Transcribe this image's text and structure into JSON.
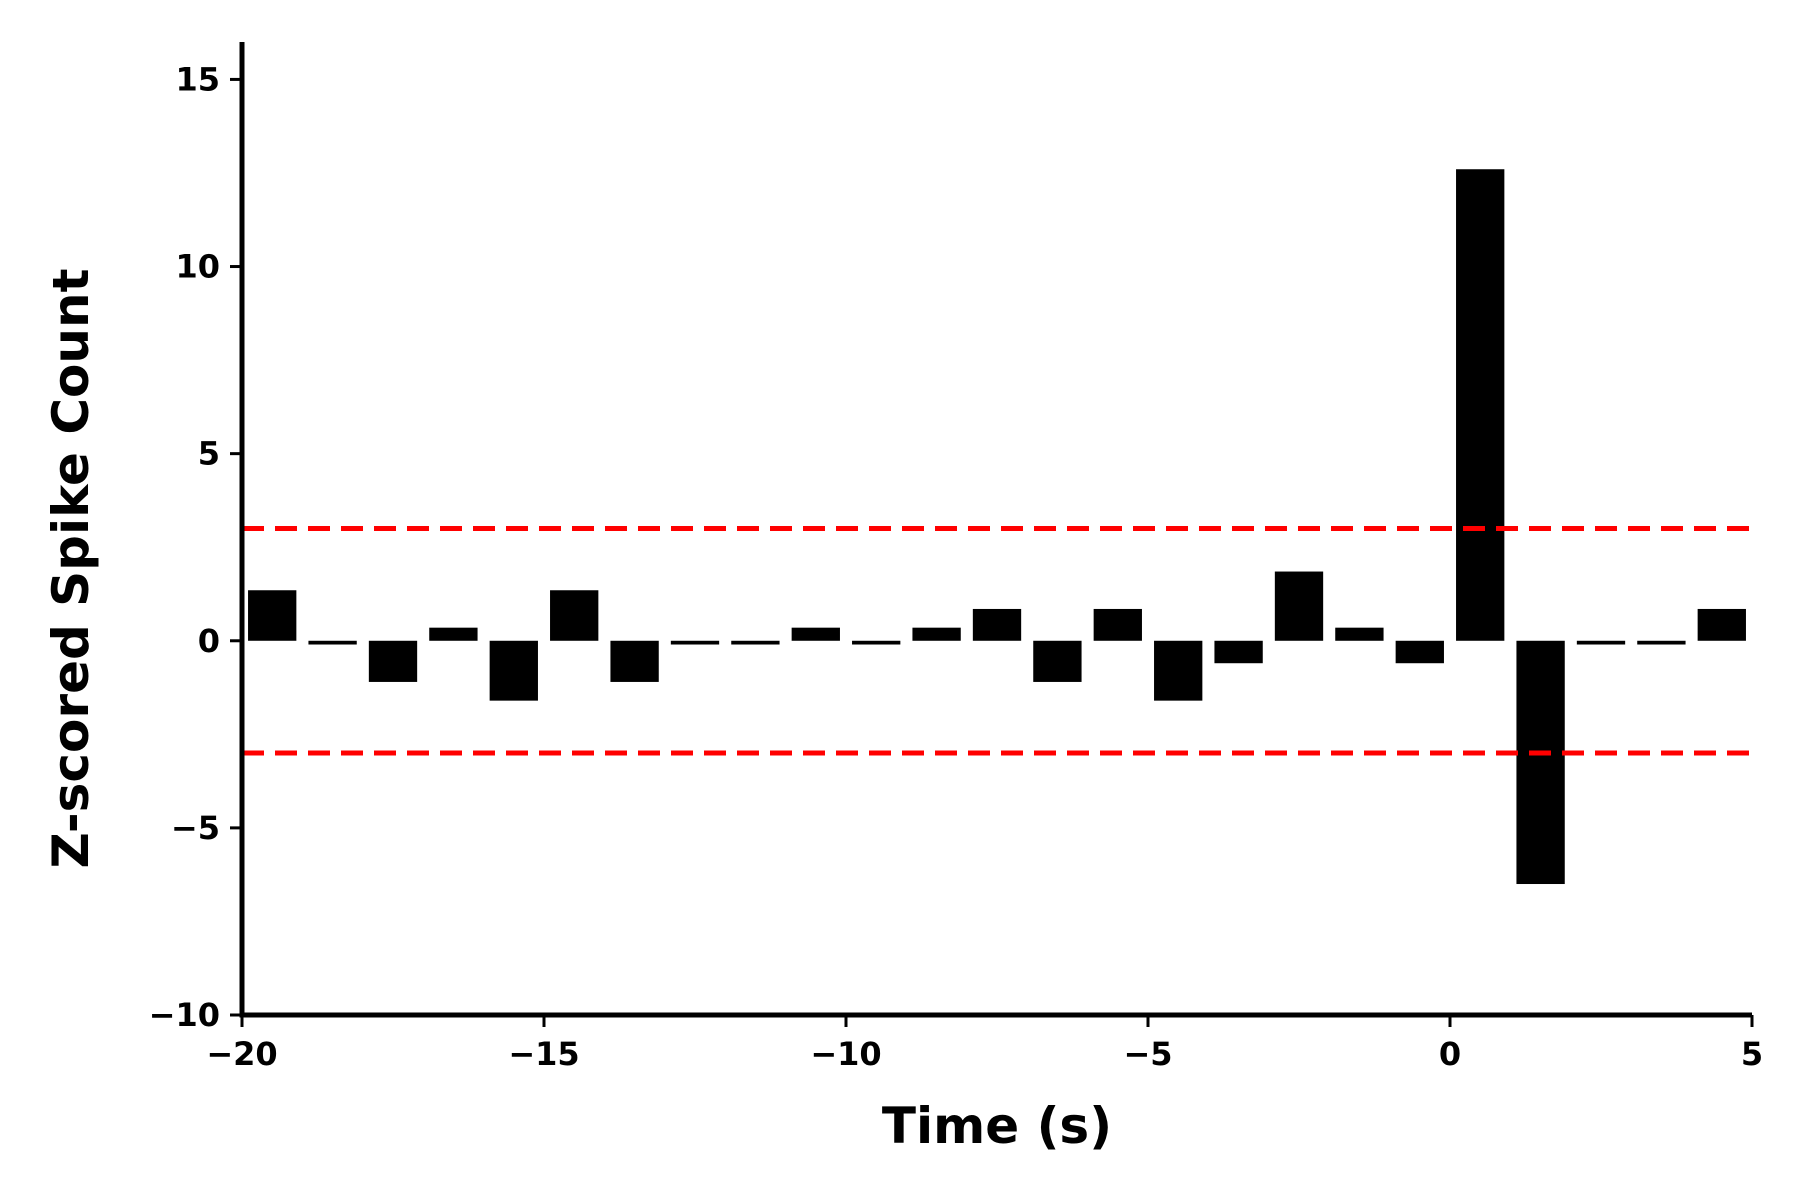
{
  "chart_data": {
    "type": "bar",
    "title": "",
    "xlabel": "Time (s)",
    "ylabel": "Z-scored Spike Count",
    "xlim": [
      -20,
      5
    ],
    "ylim": [
      -10,
      16
    ],
    "xticks": [
      -20,
      -15,
      -10,
      -5,
      0,
      5
    ],
    "xtick_labels": [
      "−20",
      "−15",
      "−10",
      "−5",
      "0",
      "5"
    ],
    "yticks": [
      -10,
      -5,
      0,
      5,
      10,
      15
    ],
    "ytick_labels": [
      "−10",
      "−5",
      "0",
      "5",
      "10",
      "15"
    ],
    "bin_width": 1,
    "bar_width": 0.8,
    "bar_color": "#000000",
    "bins_start": [
      -20,
      -19,
      -18,
      -17,
      -16,
      -15,
      -14,
      -13,
      -12,
      -11,
      -10,
      -9,
      -8,
      -7,
      -6,
      -5,
      -4,
      -3,
      -2,
      -1,
      0,
      1,
      2,
      3,
      4
    ],
    "values": [
      1.35,
      -0.1,
      -1.1,
      0.35,
      -1.6,
      1.35,
      -1.1,
      -0.1,
      -0.1,
      0.35,
      -0.1,
      0.35,
      0.85,
      -1.1,
      0.85,
      -1.6,
      -0.6,
      1.85,
      0.35,
      -0.6,
      12.6,
      -6.5,
      -0.1,
      -0.1,
      0.85
    ],
    "threshold_lines": [
      {
        "y": 3,
        "color": "#ff0000",
        "style": "dashed"
      },
      {
        "y": -3,
        "color": "#ff0000",
        "style": "dashed"
      }
    ],
    "grid": false,
    "legend": "none"
  }
}
